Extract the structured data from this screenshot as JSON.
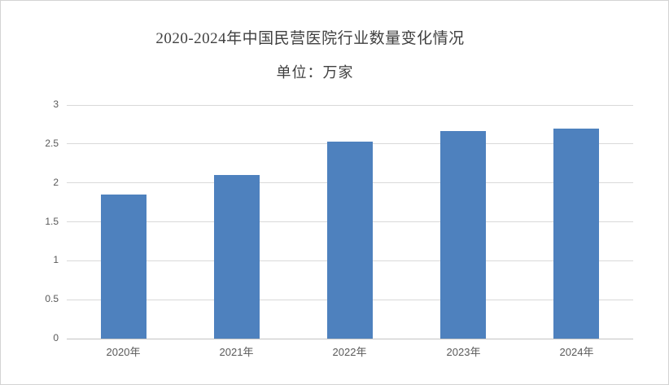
{
  "chart_data": {
    "type": "bar",
    "title": "2020-2024年中国民营医院行业数量变化情况",
    "unit_label": "单位：万家",
    "categories": [
      "2020年",
      "2021年",
      "2022年",
      "2023年",
      "2024年"
    ],
    "values": [
      1.85,
      2.1,
      2.53,
      2.67,
      2.7
    ],
    "xlabel": "",
    "ylabel": "",
    "ylim": [
      0,
      3
    ],
    "yticks": [
      0,
      0.5,
      1,
      1.5,
      2,
      2.5,
      3
    ],
    "grid": true,
    "legend": "none",
    "colors": {
      "bar": "#4e81be",
      "grid": "#d9d9d9",
      "axis_line": "#c3c3c3",
      "title_text": "#404040",
      "tick_text": "#595959",
      "frame_border": "#d4d4d4",
      "background": "#ffffff"
    }
  }
}
